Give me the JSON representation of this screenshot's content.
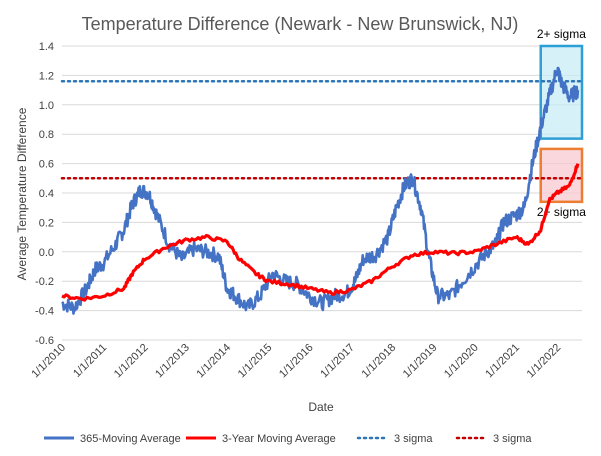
{
  "chart_data": {
    "type": "line",
    "title": "Temperature Difference (Newark - New Brunswick, NJ)",
    "xlabel": "Date",
    "ylabel": "Average Temperature  Difference",
    "ylim": [
      -0.6,
      1.4
    ],
    "yticks": [
      "-0.6",
      "-0.4",
      "-0.2",
      "0.0",
      "0.2",
      "0.4",
      "0.6",
      "0.8",
      "1.0",
      "1.2",
      "1.4"
    ],
    "xlim": [
      2010.0,
      2022.6
    ],
    "xticks": [
      "1/1/2010",
      "1/1/2011",
      "1/1/2012",
      "1/1/2013",
      "1/1/2014",
      "1/1/2015",
      "1/1/2016",
      "1/1/2017",
      "1/1/2018",
      "1/1/2019",
      "1/1/2020",
      "1/1/2021",
      "1/1/2022"
    ],
    "grid": "horizontal",
    "legend_position": "bottom",
    "series": [
      {
        "name": "365-Moving Average",
        "color": "#4472c4",
        "x": [
          2010.0,
          2010.3,
          2010.6,
          2010.8,
          2011.0,
          2011.3,
          2011.5,
          2011.7,
          2011.9,
          2012.1,
          2012.3,
          2012.6,
          2012.9,
          2013.2,
          2013.5,
          2013.8,
          2014.0,
          2014.2,
          2014.5,
          2014.8,
          2015.1,
          2015.4,
          2015.7,
          2016.0,
          2016.3,
          2016.6,
          2016.9,
          2017.1,
          2017.3,
          2017.6,
          2017.9,
          2018.1,
          2018.3,
          2018.5,
          2018.7,
          2018.9,
          2019.1,
          2019.4,
          2019.7,
          2020.0,
          2020.3,
          2020.5,
          2020.7,
          2021.0,
          2021.2,
          2021.4,
          2021.6,
          2021.8,
          2022.0,
          2022.1,
          2022.3,
          2022.5
        ],
        "y": [
          -0.35,
          -0.38,
          -0.25,
          -0.12,
          -0.08,
          0.05,
          0.15,
          0.32,
          0.42,
          0.4,
          0.25,
          0.05,
          -0.05,
          0.02,
          0.0,
          -0.03,
          -0.25,
          -0.3,
          -0.38,
          -0.3,
          -0.15,
          -0.2,
          -0.22,
          -0.3,
          -0.35,
          -0.3,
          -0.28,
          -0.2,
          -0.05,
          -0.02,
          0.1,
          0.3,
          0.45,
          0.5,
          0.3,
          -0.05,
          -0.3,
          -0.3,
          -0.2,
          -0.1,
          0.0,
          0.05,
          0.2,
          0.25,
          0.3,
          0.6,
          0.85,
          1.05,
          1.25,
          1.15,
          1.05,
          1.1
        ]
      },
      {
        "name": "3-Year Moving Average",
        "color": "#ff0000",
        "x": [
          2010.0,
          2010.5,
          2011.0,
          2011.5,
          2011.7,
          2012.0,
          2012.5,
          2013.0,
          2013.5,
          2014.0,
          2014.3,
          2014.7,
          2015.0,
          2015.5,
          2016.0,
          2016.5,
          2017.0,
          2017.5,
          2018.0,
          2018.5,
          2019.0,
          2019.5,
          2020.0,
          2020.5,
          2021.0,
          2021.3,
          2021.6,
          2021.8,
          2022.0,
          2022.3,
          2022.5
        ],
        "y": [
          -0.3,
          -0.32,
          -0.3,
          -0.25,
          -0.15,
          -0.05,
          0.03,
          0.08,
          0.1,
          0.07,
          -0.05,
          -0.15,
          -0.2,
          -0.22,
          -0.25,
          -0.28,
          -0.26,
          -0.2,
          -0.1,
          -0.02,
          0.0,
          -0.01,
          0.0,
          0.05,
          0.1,
          0.05,
          0.15,
          0.35,
          0.4,
          0.45,
          0.6
        ]
      }
    ],
    "reference_lines": [
      {
        "name": "3 sigma",
        "y": 1.16,
        "color": "#2e75b6",
        "style": "dotted"
      },
      {
        "name": "3 sigma",
        "y": 0.5,
        "color": "#c00000",
        "style": "dotted"
      }
    ],
    "annotations": [
      {
        "text": "2+ sigma",
        "x_range": [
          2021.6,
          2022.6
        ],
        "y_range": [
          0.77,
          1.4
        ],
        "fill": "#c6ebf7",
        "stroke": "#2e9ed6"
      },
      {
        "text": "2+ sigma",
        "x_range": [
          2021.6,
          2022.6
        ],
        "y_range": [
          0.34,
          0.7
        ],
        "fill": "#f7c6cf",
        "stroke": "#ed7d31"
      }
    ]
  }
}
